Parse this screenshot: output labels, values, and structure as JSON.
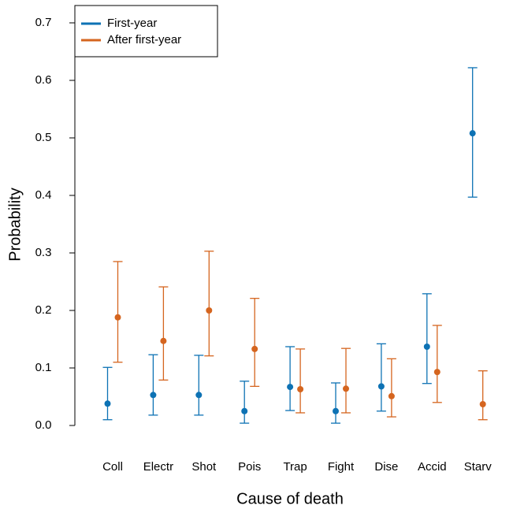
{
  "chart_data": {
    "type": "interval",
    "x_label": "Cause of death",
    "y_label": "Probability",
    "categories": [
      "Coll",
      "Electr",
      "Shot",
      "Pois",
      "Trap",
      "Fight",
      "Dise",
      "Accid",
      "Starv"
    ],
    "series": [
      {
        "name": "First-year",
        "color": "#0d72b4",
        "values": [
          0.038,
          0.053,
          0.053,
          0.025,
          0.067,
          0.025,
          0.068,
          0.137,
          0.508
        ],
        "lower": [
          0.01,
          0.018,
          0.018,
          0.004,
          0.026,
          0.004,
          0.025,
          0.073,
          0.397
        ],
        "upper": [
          0.101,
          0.123,
          0.122,
          0.077,
          0.137,
          0.074,
          0.142,
          0.229,
          0.622
        ]
      },
      {
        "name": "After first-year",
        "color": "#d5651f",
        "values": [
          0.188,
          0.147,
          0.2,
          0.133,
          0.063,
          0.064,
          0.051,
          0.093,
          0.037
        ],
        "lower": [
          0.11,
          0.079,
          0.121,
          0.068,
          0.022,
          0.022,
          0.015,
          0.04,
          0.01
        ],
        "upper": [
          0.285,
          0.241,
          0.303,
          0.221,
          0.133,
          0.134,
          0.116,
          0.174,
          0.095
        ]
      }
    ],
    "ylim": [
      0,
      0.7
    ],
    "yticks": [
      {
        "value": 0,
        "label": "0.0"
      },
      0.1,
      0.2,
      0.3,
      0.4,
      0.5,
      0.6,
      0.7
    ],
    "legend": "top-left"
  }
}
